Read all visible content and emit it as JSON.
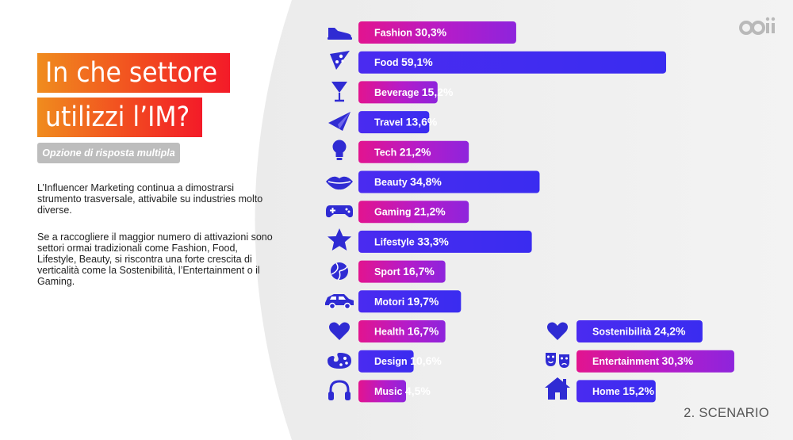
{
  "title_lines": [
    "In che settore",
    "utilizzi l’IM?"
  ],
  "subtitle": "Opzione di risposta multipla",
  "paragraphs": [
    "L’Influencer Marketing continua a dimostrarsi strumento trasversale, attivabile su industries molto diverse.",
    "Se a raccogliere il maggior numero di attivazioni sono settori ormai tradizionali come Fashion, Food, Lifestyle, Beauty, si riscontra una forte crescita di verticalità come la Sostenibilità, l’Entertainment o il Gaming."
  ],
  "footer": "2. SCENARIO",
  "logo_text": "oii",
  "colors": {
    "pink": "#e2148f",
    "purple": "#9b1fd8",
    "blue": "#3a2cf0",
    "title_orange": "#f08c1e",
    "title_red": "#f31b28",
    "icon": "#2f2bd3"
  },
  "chart_data": {
    "type": "bar",
    "orientation": "horizontal",
    "unit": "%",
    "series": [
      {
        "categories": [
          "Fashion",
          "Food",
          "Beverage",
          "Travel",
          "Tech",
          "Beauty",
          "Gaming",
          "Lifestyle",
          "Sport",
          "Motori",
          "Health",
          "Design",
          "Music"
        ],
        "values": [
          30.3,
          59.1,
          15.2,
          13.6,
          21.2,
          34.8,
          21.2,
          33.3,
          16.7,
          19.7,
          16.7,
          10.6,
          4.5
        ],
        "labels": [
          "30,3%",
          "59,1%",
          "15,2%",
          "13,6%",
          "21,2%",
          "34,8%",
          "21,2%",
          "33,3%",
          "16,7%",
          "19,7%",
          "16,7%",
          "10,6%",
          "4,5%"
        ],
        "icons": [
          "shoe-icon",
          "pizza-icon",
          "cocktail-icon",
          "paper-plane-icon",
          "lightbulb-icon",
          "lips-icon",
          "gamepad-icon",
          "star-icon",
          "volleyball-icon",
          "car-icon",
          "heart-icon",
          "palette-icon",
          "headphones-icon"
        ]
      },
      {
        "categories": [
          "Sostenibilità",
          "Entertainment",
          "Home"
        ],
        "values": [
          24.2,
          30.3,
          15.2
        ],
        "labels": [
          "24,2%",
          "30,3%",
          "15,2%"
        ],
        "icons": [
          "heart-icon",
          "theater-masks-icon",
          "house-icon"
        ]
      }
    ]
  }
}
